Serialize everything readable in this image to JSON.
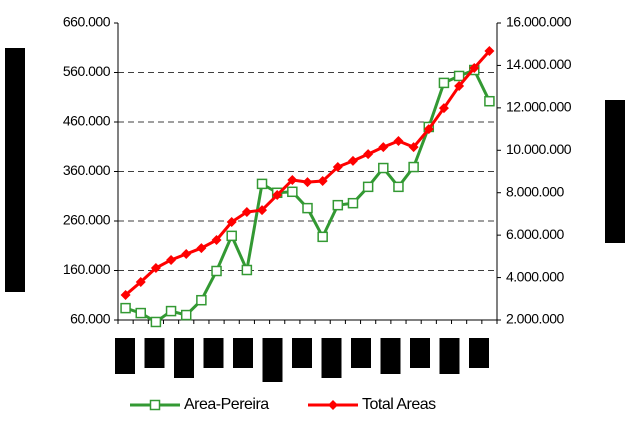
{
  "chart_data": {
    "type": "line",
    "categories": [
      null,
      null,
      null,
      null,
      null,
      null,
      null,
      null,
      null,
      null,
      null,
      null,
      null,
      null,
      null,
      null,
      null,
      null,
      null,
      null,
      null,
      null,
      null,
      null,
      null
    ],
    "series": [
      {
        "name": "Area-Pereira",
        "color": "#339933",
        "marker": "square",
        "values": [
          84000,
          74000,
          56000,
          78000,
          70000,
          100000,
          159000,
          230000,
          161000,
          335000,
          317000,
          319000,
          286000,
          228000,
          292000,
          296000,
          329000,
          367000,
          329000,
          369000,
          450000,
          539000,
          553000,
          565000,
          502000
        ]
      },
      {
        "name": "Total Areas",
        "color": "#ff0000",
        "marker": "diamond",
        "axis": "y2",
        "values": [
          3180000,
          3790000,
          4450000,
          4830000,
          5110000,
          5390000,
          5770000,
          6620000,
          7090000,
          7180000,
          7890000,
          8600000,
          8500000,
          8550000,
          9210000,
          9500000,
          9820000,
          10150000,
          10440000,
          10150000,
          11000000,
          11990000,
          13030000,
          13880000,
          14680000
        ]
      }
    ],
    "ylim": [
      60000,
      660000
    ],
    "yticks": [
      {
        "value": 60000,
        "label": "60.000"
      },
      {
        "value": 160000,
        "label": "160.000"
      },
      {
        "value": 260000,
        "label": "260.000"
      },
      {
        "value": 360000,
        "label": "360.000"
      },
      {
        "value": 460000,
        "label": "460.000"
      },
      {
        "value": 560000,
        "label": "560.000"
      },
      {
        "value": 660000,
        "label": "660.000"
      }
    ],
    "y2lim": [
      2000000,
      16000000
    ],
    "y2ticks": [
      {
        "value": 2000000,
        "label": "2.000.000"
      },
      {
        "value": 4000000,
        "label": "4.000.000"
      },
      {
        "value": 6000000,
        "label": "6.000.000"
      },
      {
        "value": 8000000,
        "label": "8.000.000"
      },
      {
        "value": 10000000,
        "label": "10.000.000"
      },
      {
        "value": 12000000,
        "label": "12.000.000"
      },
      {
        "value": 14000000,
        "label": "14.000.000"
      },
      {
        "value": 16000000,
        "label": "16.000.000"
      }
    ],
    "grid": true,
    "legend": "bottom"
  }
}
